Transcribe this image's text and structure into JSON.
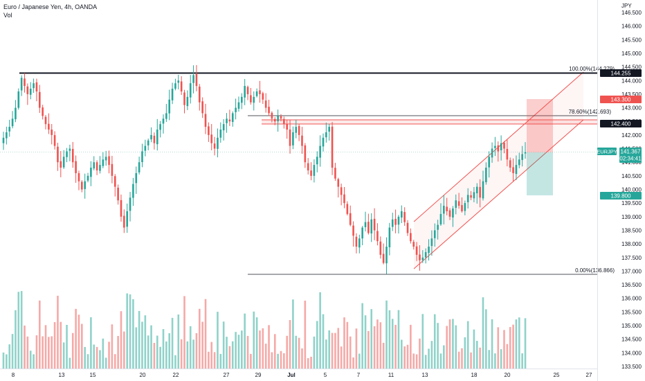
{
  "legend": {
    "title": "Euro / Japanese Yen, 4h, OANDA",
    "volume_label": "Vol"
  },
  "axis": {
    "currency": "JPY",
    "price_ticks": [
      "146.500",
      "146.000",
      "145.500",
      "145.000",
      "144.500",
      "144.000",
      "143.500",
      "143.000",
      "142.500",
      "142.000",
      "141.500",
      "141.000",
      "140.500",
      "140.000",
      "139.500",
      "139.000",
      "138.500",
      "138.000",
      "137.500",
      "137.000",
      "136.500",
      "136.000",
      "135.500",
      "135.000",
      "134.500",
      "134.000",
      "133.500"
    ],
    "date_ticks": [
      "8",
      "13",
      "15",
      "20",
      "22",
      "27",
      "29",
      "Jul",
      "5",
      "7",
      "11",
      "13",
      "18",
      "20",
      "25",
      "27"
    ]
  },
  "price_labels": {
    "resistance": "144.255",
    "stop": "143.300",
    "level": "142.400",
    "symbol": "EURJPY",
    "last": "141.367",
    "countdown": "02:34:41",
    "target": "139.800"
  },
  "fib_labels": {
    "top": "100.00%(144.279)",
    "mid": "78.60%(142.693)",
    "bottom": "0.00%(136.866)"
  },
  "colors": {
    "up": "#26a69a",
    "down": "#ef5350",
    "vol_up": "#8fd2c9",
    "vol_down": "#f5a9a7",
    "channel": "#ef5350",
    "label_dark": "#131722",
    "label_green": "#26a69a"
  },
  "chart_data": {
    "type": "candlestick",
    "symbol": "EURJPY",
    "interval": "4h",
    "y_range": [
      133.4,
      146.7
    ],
    "closes": [
      141.9,
      142.1,
      142.3,
      142.6,
      143.0,
      143.6,
      144.1,
      143.8,
      143.5,
      143.7,
      143.9,
      143.6,
      143.0,
      142.7,
      142.4,
      142.2,
      142.0,
      141.6,
      141.0,
      140.8,
      141.2,
      141.4,
      141.5,
      141.0,
      140.6,
      140.3,
      140.0,
      140.3,
      140.5,
      140.8,
      141.0,
      140.7,
      140.9,
      141.1,
      141.2,
      140.9,
      140.5,
      140.1,
      139.6,
      139.0,
      138.6,
      139.2,
      139.7,
      140.2,
      140.6,
      141.0,
      141.4,
      141.6,
      141.8,
      142.0,
      141.7,
      142.2,
      142.4,
      142.6,
      142.8,
      143.3,
      143.7,
      143.9,
      144.0,
      143.6,
      143.1,
      143.4,
      143.9,
      144.2,
      143.8,
      143.2,
      142.8,
      142.3,
      142.0,
      141.7,
      141.5,
      141.9,
      142.2,
      142.4,
      142.6,
      142.5,
      142.8,
      143.0,
      143.2,
      143.4,
      143.8,
      143.5,
      143.2,
      143.4,
      143.6,
      143.5,
      143.3,
      143.0,
      142.8,
      142.6,
      142.5,
      142.7,
      142.6,
      142.4,
      142.2,
      141.6,
      142.1,
      142.3,
      142.0,
      141.6,
      141.0,
      140.7,
      140.5,
      140.9,
      141.2,
      141.6,
      141.9,
      142.1,
      142.3,
      140.8,
      140.4,
      140.1,
      139.8,
      139.5,
      139.1,
      138.7,
      138.3,
      137.9,
      138.2,
      138.6,
      138.8,
      138.4,
      138.9,
      138.5,
      138.1,
      137.6,
      137.3,
      137.9,
      138.6,
      138.9,
      138.7,
      139.0,
      139.2,
      138.8,
      138.4,
      138.1,
      137.9,
      137.6,
      137.4,
      137.5,
      137.7,
      137.9,
      138.2,
      138.5,
      138.7,
      139.1,
      139.4,
      139.2,
      139.0,
      139.3,
      139.6,
      139.4,
      139.2,
      139.5,
      139.8,
      139.7,
      139.9,
      140.1,
      139.7,
      140.3,
      140.8,
      141.2,
      141.5,
      141.6,
      141.4,
      141.7,
      141.5,
      141.1,
      140.8,
      140.6,
      140.9,
      141.1,
      141.3,
      141.367
    ],
    "levels": {
      "resistance": 144.255,
      "stop": 143.3,
      "entry": 142.4,
      "target": 139.8,
      "last": 141.367,
      "fib_100": 144.279,
      "fib_78_6": 142.693,
      "fib_0": 136.866
    }
  }
}
